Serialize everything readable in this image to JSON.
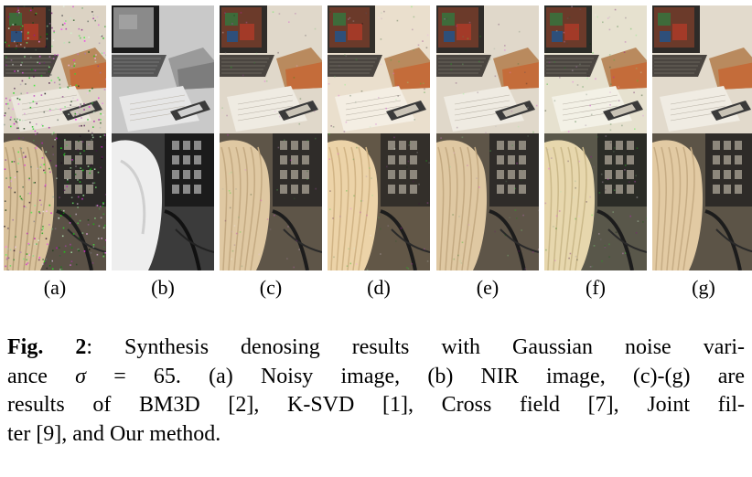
{
  "panels": [
    {
      "label": "(a)",
      "tone": "noisy"
    },
    {
      "label": "(b)",
      "tone": "nir"
    },
    {
      "label": "(c)",
      "tone": "smooth-warm"
    },
    {
      "label": "(d)",
      "tone": "bright-warm"
    },
    {
      "label": "(e)",
      "tone": "smooth-warm"
    },
    {
      "label": "(f)",
      "tone": "bright-cool"
    },
    {
      "label": "(g)",
      "tone": "clean"
    }
  ],
  "caption": {
    "fig_label": "Fig. 2",
    "line1_rest": ": Synthesis denosing results with Gaussian noise vari-",
    "line2_start": "ance ",
    "sigma": "σ",
    "line2_eq": " = 65.",
    "line2_rest": "  (a) Noisy image, (b) NIR image, (c)-(g) are",
    "line3": "results of BM3D [2], K-SVD [1], Cross field [7], Joint fil-",
    "line4": "ter [9], and Our method."
  }
}
